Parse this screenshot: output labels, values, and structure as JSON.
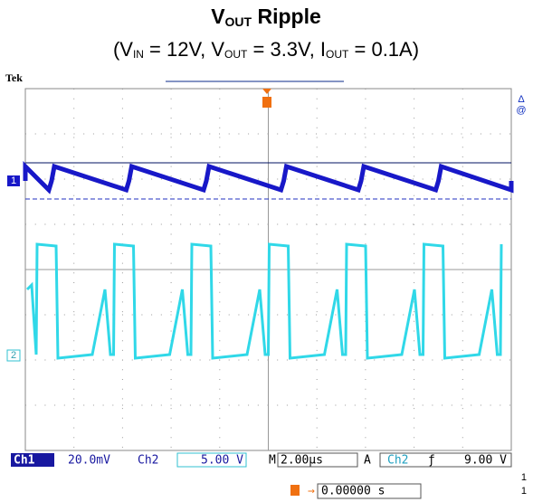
{
  "header": {
    "title": [
      "V",
      "OUT",
      " Ripple"
    ],
    "subtitle": [
      "(V",
      "IN",
      " = 12V, V",
      "OUT",
      " = 3.3V, I",
      "OUT",
      " = 0.1A)"
    ]
  },
  "scope": {
    "brand": "Tek",
    "ch1_marker": "1",
    "ch2_marker": "2",
    "status": {
      "ch1": "Ch1",
      "ch1_scale": "20.0mV",
      "ch2": "Ch2",
      "ch2_scale": "5.00 V",
      "timebase_label": "M",
      "timebase": "2.00µs",
      "trigger_mode": "A",
      "trigger_source": "Ch2",
      "trigger_level": "9.00 V"
    },
    "trigger_position": "0.00000 s",
    "right_notes": [
      "1",
      "1"
    ]
  }
}
